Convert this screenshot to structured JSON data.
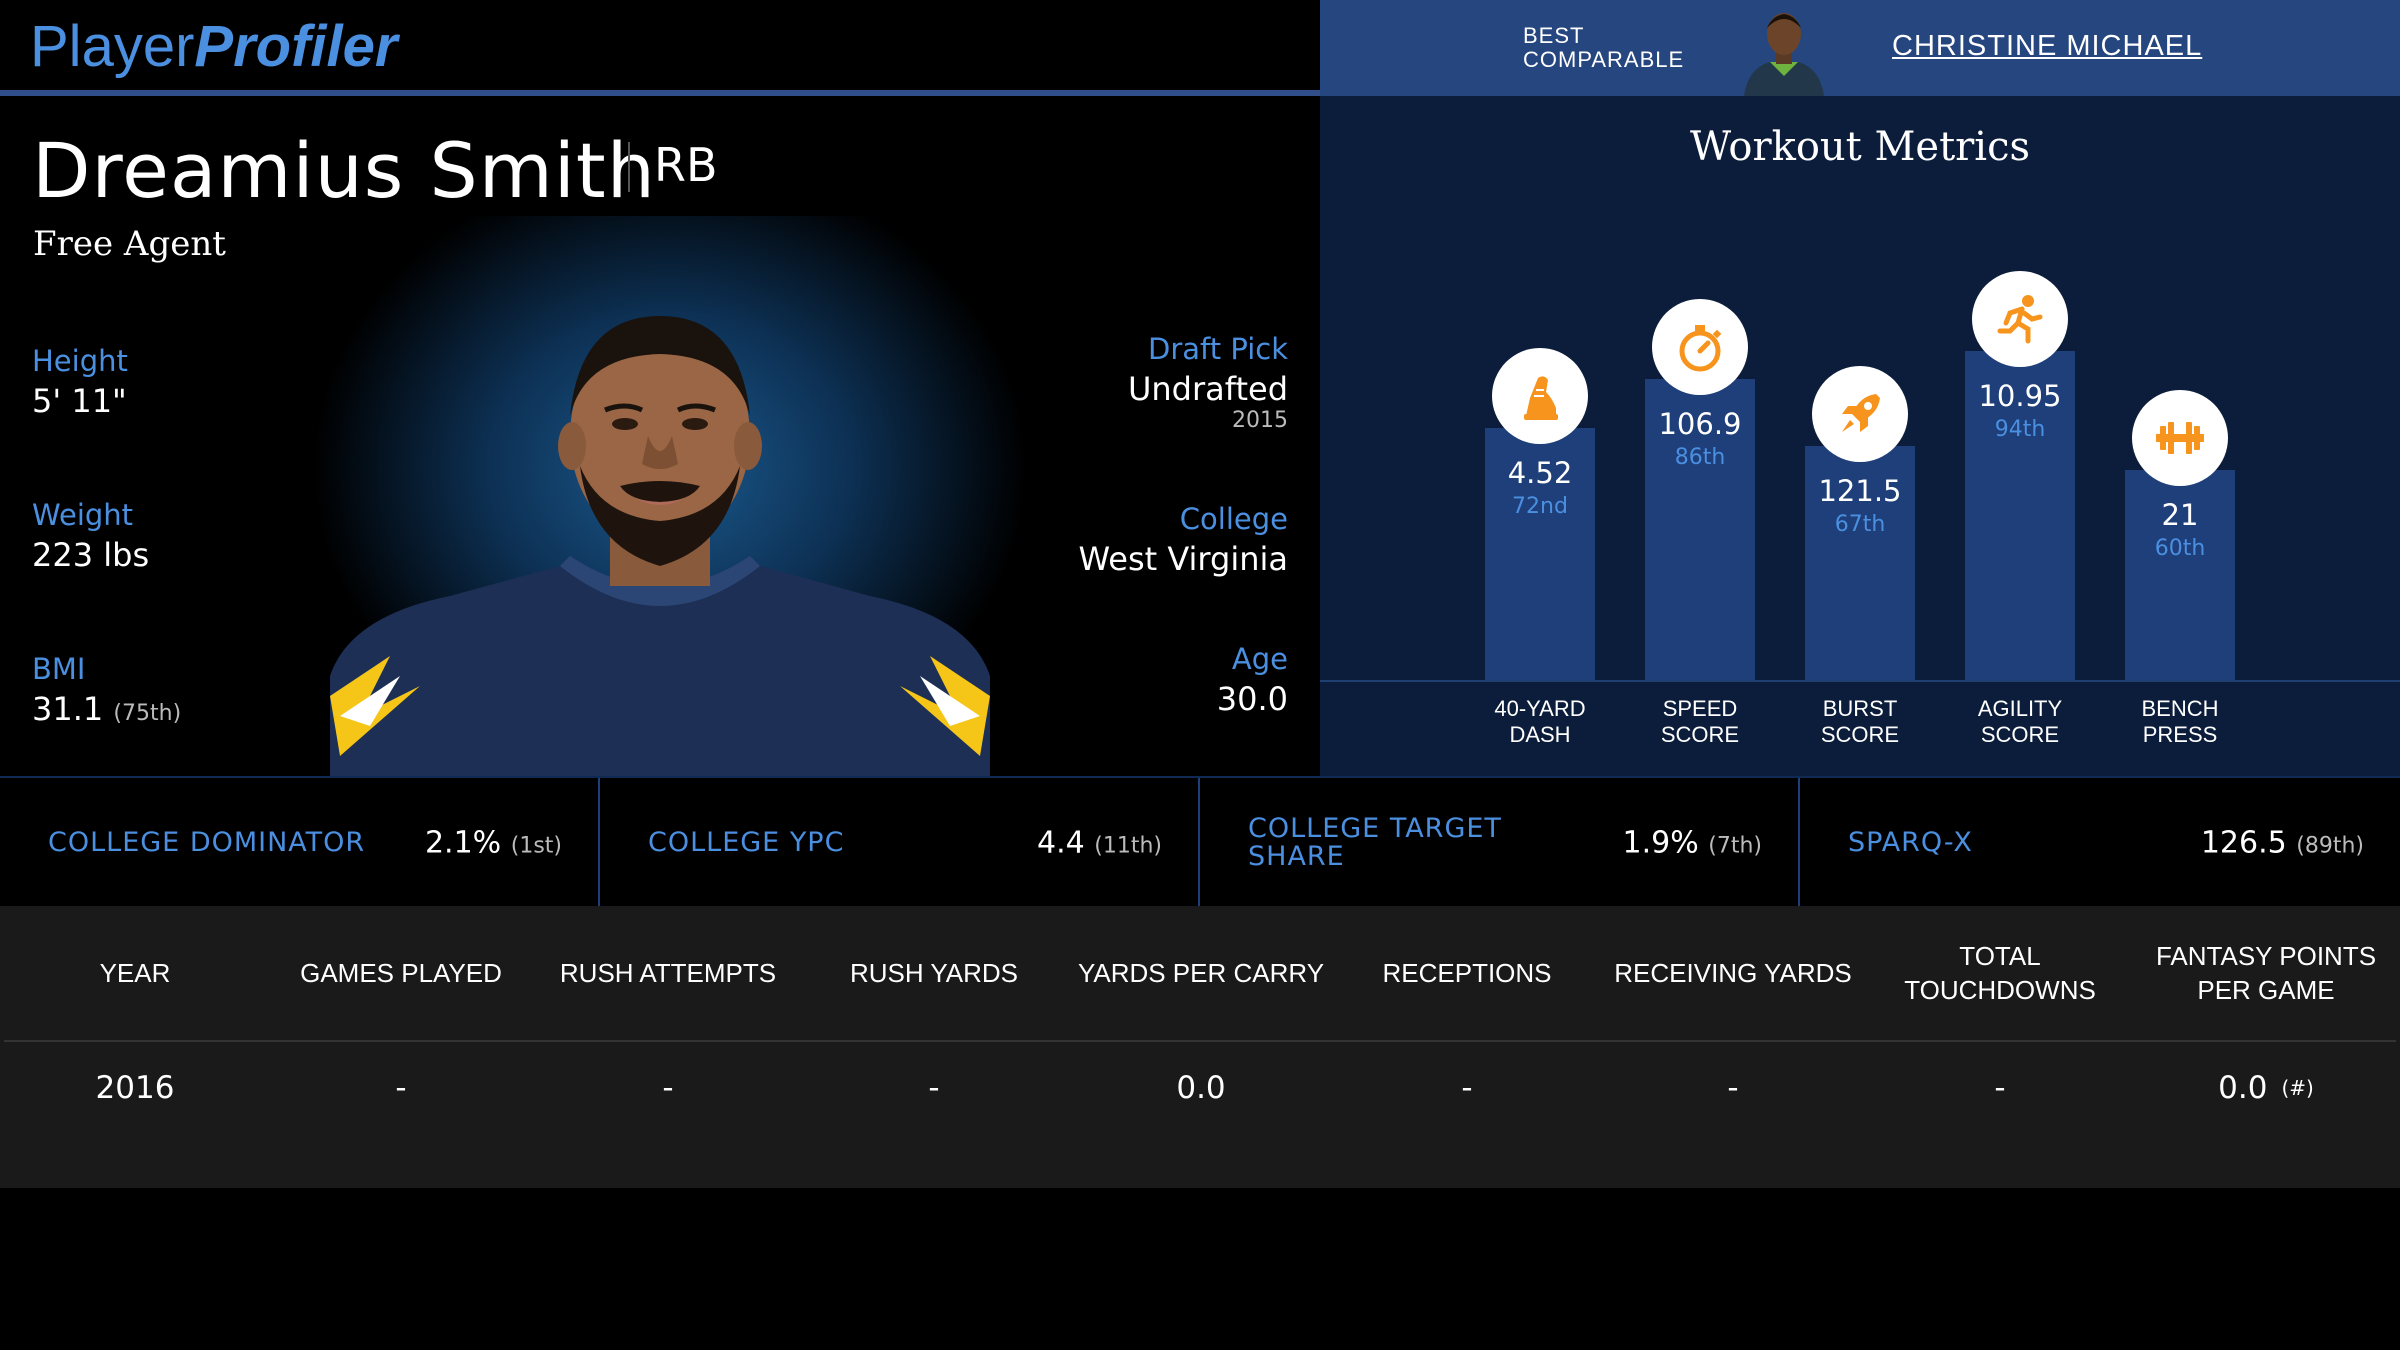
{
  "header": {
    "logo_part1": "Player",
    "logo_part2": "Profiler",
    "best_comparable_label_1": "BEST",
    "best_comparable_label_2": "COMPARABLE",
    "best_comparable_name": "CHRISTINE MICHAEL"
  },
  "player": {
    "name": "Dreamius Smith",
    "position": "RB",
    "team": "Free Agent",
    "height_label": "Height",
    "height_value": "5' 11\"",
    "weight_label": "Weight",
    "weight_value": "223 lbs",
    "bmi_label": "BMI",
    "bmi_value": "31.1",
    "bmi_rank": "(75th)",
    "draft_label": "Draft Pick",
    "draft_value": "Undrafted",
    "draft_year": "2015",
    "college_label": "College",
    "college_value": "West Virginia",
    "age_label": "Age",
    "age_value": "30.0"
  },
  "workout": {
    "title": "Workout Metrics",
    "metrics": [
      {
        "label_1": "40-YARD",
        "label_2": "DASH",
        "value": "4.52",
        "percentile": "72nd",
        "percentile_num": 72,
        "icon": "running-shoe-icon"
      },
      {
        "label_1": "SPEED",
        "label_2": "SCORE",
        "value": "106.9",
        "percentile": "86th",
        "percentile_num": 86,
        "icon": "stopwatch-icon"
      },
      {
        "label_1": "BURST",
        "label_2": "SCORE",
        "value": "121.5",
        "percentile": "67th",
        "percentile_num": 67,
        "icon": "rocket-icon"
      },
      {
        "label_1": "AGILITY",
        "label_2": "SCORE",
        "value": "10.95",
        "percentile": "94th",
        "percentile_num": 94,
        "icon": "runner-icon"
      },
      {
        "label_1": "BENCH",
        "label_2": "PRESS",
        "value": "21",
        "percentile": "60th",
        "percentile_num": 60,
        "icon": "barbell-icon"
      }
    ],
    "icon_color": "#f7941d"
  },
  "college_stats": [
    {
      "label_1": "COLLEGE DOMINATOR",
      "label_2": "",
      "value": "2.1%",
      "rank": "(1st)"
    },
    {
      "label_1": "COLLEGE YPC",
      "label_2": "",
      "value": "4.4",
      "rank": "(11th)"
    },
    {
      "label_1": "COLLEGE TARGET",
      "label_2": "SHARE",
      "value": "1.9%",
      "rank": "(7th)"
    },
    {
      "label_1": "SPARQ-X",
      "label_2": "",
      "value": "126.5",
      "rank": "(89th)"
    }
  ],
  "stats_table": {
    "headers": [
      "YEAR",
      "GAMES PLAYED",
      "RUSH ATTEMPTS",
      "RUSH YARDS",
      "YARDS PER CARRY",
      "RECEPTIONS",
      "RECEIVING YARDS",
      "TOTAL TOUCHDOWNS",
      "FANTASY POINTS PER GAME"
    ],
    "rows": [
      [
        "2016",
        "-",
        "-",
        "-",
        "0.0",
        "-",
        "-",
        "-",
        "0.0"
      ]
    ],
    "rank_marker": "(#)"
  },
  "colors": {
    "accent_blue": "#4b8fe0",
    "bar_blue": "#1e3f7a",
    "panel_navy": "#0c1d3b",
    "header_blue": "#26467f"
  }
}
